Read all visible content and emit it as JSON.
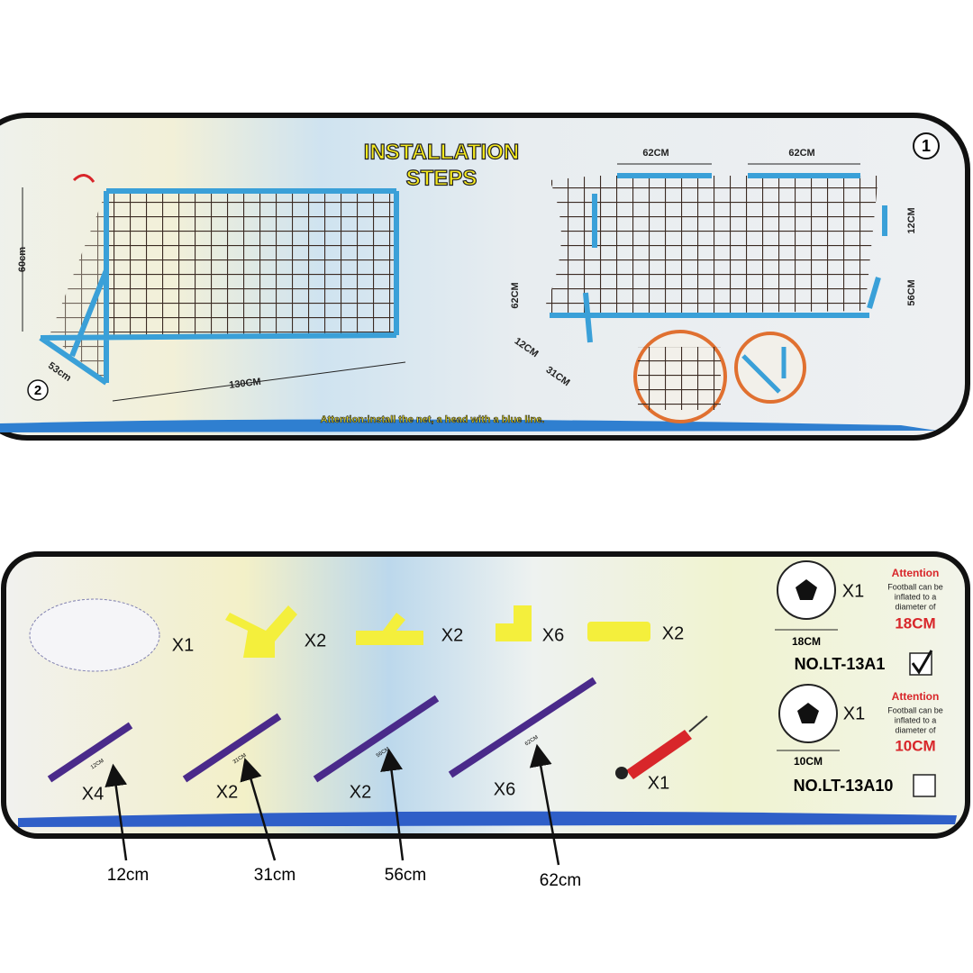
{
  "installation": {
    "title_line1": "INSTALLATION",
    "title_line2": "STEPS",
    "step_1": "1",
    "step_2": "2",
    "left_diagram": {
      "height": "60cm",
      "depth": "53cm",
      "width": "130CM"
    },
    "right_diagram": {
      "top_left": "62CM",
      "top_right": "62CM",
      "right_upper": "12CM",
      "right_lower": "56CM",
      "left_side": "62CM",
      "left_lower": "12CM",
      "bottom_left": "31CM"
    },
    "attention": "Attention:install the net, a head with a blue line."
  },
  "parts": {
    "net": "X1",
    "connector_a": "X2",
    "connector_b": "X2",
    "elbow": "X6",
    "straight": "X2",
    "tubes": [
      {
        "length": "12CM",
        "qty": "X4"
      },
      {
        "length": "31CM",
        "qty": "X2"
      },
      {
        "length": "56CM",
        "qty": "X2"
      },
      {
        "length": "62CM",
        "qty": "X6"
      }
    ],
    "pump": "X1",
    "balls": [
      {
        "qty": "X1",
        "attention": "Attention",
        "note": [
          "Football can be",
          "inflated to a",
          "diameter of"
        ],
        "diameter": "18CM",
        "size_label": "18CM",
        "model": "NO.LT-13A1"
      },
      {
        "qty": "X1",
        "attention": "Attention",
        "note": [
          "Football can be",
          "inflated to a",
          "diameter of"
        ],
        "diameter": "10CM",
        "size_label": "10CM",
        "model": "NO.LT-13A10"
      }
    ]
  },
  "callouts": [
    "12cm",
    "31cm",
    "56cm",
    "62cm"
  ]
}
